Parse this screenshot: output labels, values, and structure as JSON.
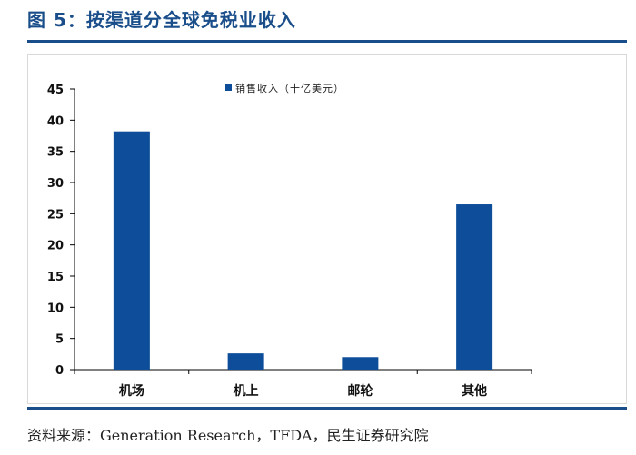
{
  "figure": {
    "title": "图 5：按渠道分全球免税业收入",
    "source": "资料来源：Generation Research，TFDA，民生证券研究院"
  },
  "colors": {
    "bar": "#0d4d9a",
    "title": "#1a4e8a"
  },
  "chart_data": {
    "type": "bar",
    "title": "按渠道分全球免税业收入",
    "categories": [
      "机场",
      "机上",
      "邮轮",
      "其他"
    ],
    "series": [
      {
        "name": "销售收入（十亿美元）",
        "values": [
          38.2,
          2.6,
          2.0,
          26.5
        ]
      }
    ],
    "ylim": [
      0,
      45
    ],
    "yticks": [
      0,
      5,
      10,
      15,
      20,
      25,
      30,
      35,
      40,
      45
    ],
    "xlabel": "",
    "ylabel": "",
    "legend": "top-center",
    "grid": false
  }
}
